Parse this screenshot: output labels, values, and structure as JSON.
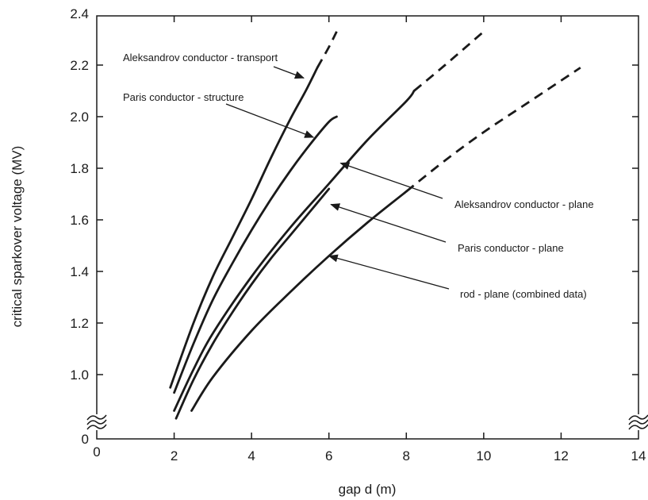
{
  "chart_data": {
    "type": "line",
    "xlabel": "gap d (m)",
    "ylabel": "critical sparkover voltage (MV)",
    "x_ticks": [
      "0",
      "2",
      "4",
      "6",
      "8",
      "10",
      "12",
      "14"
    ],
    "y_ticks": [
      "0",
      "1.0",
      "1.2",
      "1.4",
      "1.6",
      "1.8",
      "2.0",
      "2.2",
      "2.4"
    ],
    "xlim": [
      0,
      14
    ],
    "ylim_display": [
      0.75,
      2.4
    ],
    "y_axis_break": true,
    "grid": false,
    "series": [
      {
        "name": "Aleksandrov conductor - transport",
        "solid": [
          [
            1.9,
            0.95
          ],
          [
            2.5,
            1.2
          ],
          [
            3.0,
            1.38
          ],
          [
            3.5,
            1.53
          ],
          [
            4.0,
            1.68
          ],
          [
            4.5,
            1.84
          ],
          [
            5.0,
            1.99
          ],
          [
            5.4,
            2.1
          ],
          [
            5.7,
            2.19
          ]
        ],
        "dashed": [
          [
            5.7,
            2.19
          ],
          [
            6.0,
            2.27
          ],
          [
            6.2,
            2.33
          ]
        ]
      },
      {
        "name": "Paris conductor - structure",
        "solid": [
          [
            2.0,
            0.93
          ],
          [
            2.5,
            1.12
          ],
          [
            3.0,
            1.29
          ],
          [
            3.5,
            1.43
          ],
          [
            4.0,
            1.56
          ],
          [
            4.5,
            1.68
          ],
          [
            5.0,
            1.79
          ],
          [
            5.5,
            1.89
          ],
          [
            6.0,
            1.98
          ],
          [
            6.2,
            2.0
          ]
        ],
        "dashed": []
      },
      {
        "name": "Aleksandrov conductor - plane",
        "solid": [
          [
            2.0,
            0.86
          ],
          [
            2.5,
            1.02
          ],
          [
            3.0,
            1.16
          ],
          [
            4.0,
            1.38
          ],
          [
            5.0,
            1.57
          ],
          [
            6.0,
            1.74
          ],
          [
            7.0,
            1.91
          ],
          [
            8.0,
            2.06
          ],
          [
            8.2,
            2.1
          ]
        ],
        "dashed": [
          [
            8.2,
            2.1
          ],
          [
            9.0,
            2.2
          ],
          [
            10.0,
            2.33
          ]
        ]
      },
      {
        "name": "Paris conductor - plane",
        "solid": [
          [
            2.05,
            0.83
          ],
          [
            2.5,
            0.98
          ],
          [
            3.0,
            1.12
          ],
          [
            3.5,
            1.24
          ],
          [
            4.0,
            1.35
          ],
          [
            4.5,
            1.45
          ],
          [
            5.0,
            1.54
          ],
          [
            5.5,
            1.63
          ],
          [
            6.0,
            1.72
          ]
        ],
        "dashed": []
      },
      {
        "name": "rod - plane (combined data)",
        "solid": [
          [
            2.45,
            0.86
          ],
          [
            3.0,
            0.99
          ],
          [
            4.0,
            1.17
          ],
          [
            5.0,
            1.32
          ],
          [
            6.0,
            1.46
          ],
          [
            7.0,
            1.59
          ],
          [
            8.0,
            1.71
          ]
        ],
        "dashed": [
          [
            8.0,
            1.71
          ],
          [
            9.0,
            1.83
          ],
          [
            10.0,
            1.94
          ],
          [
            11.0,
            2.04
          ],
          [
            12.0,
            2.14
          ],
          [
            12.5,
            2.19
          ]
        ]
      }
    ],
    "annotations": [
      {
        "text": "Aleksandrov conductor - transport",
        "arrow_to": [
          5.35,
          2.15
        ]
      },
      {
        "text": "Paris conductor - structure",
        "arrow_to": [
          5.6,
          1.92
        ]
      },
      {
        "text": "Aleksandrov conductor - plane",
        "arrow_to": [
          6.3,
          1.82
        ]
      },
      {
        "text": "Paris conductor - plane",
        "arrow_to": [
          6.05,
          1.66
        ]
      },
      {
        "text": "rod - plane (combined data)",
        "arrow_to": [
          6.0,
          1.46
        ]
      }
    ]
  }
}
